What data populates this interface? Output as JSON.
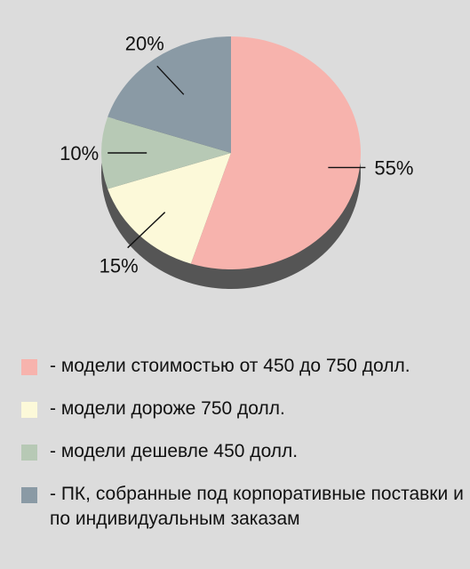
{
  "chart_data": {
    "type": "pie",
    "slices": [
      {
        "label": "- модели стоимостью от 450 до 750 долл.",
        "value": 55,
        "value_label": "55%",
        "color": "#f7b3ad"
      },
      {
        "label": "- модели дороже 750 долл.",
        "value": 15,
        "value_label": "15%",
        "color": "#fcf9d9"
      },
      {
        "label": "- модели дешевле 450 долл.",
        "value": 10,
        "value_label": "10%",
        "color": "#b7c9b5"
      },
      {
        "label": "- ПК, собранные под корпоративные поставки и по индивидуальным заказам",
        "value": 20,
        "value_label": "20%",
        "color": "#8a9aa5"
      }
    ],
    "shadow_color": "#555555",
    "style": "3d-tilted",
    "legend_position": "bottom"
  }
}
